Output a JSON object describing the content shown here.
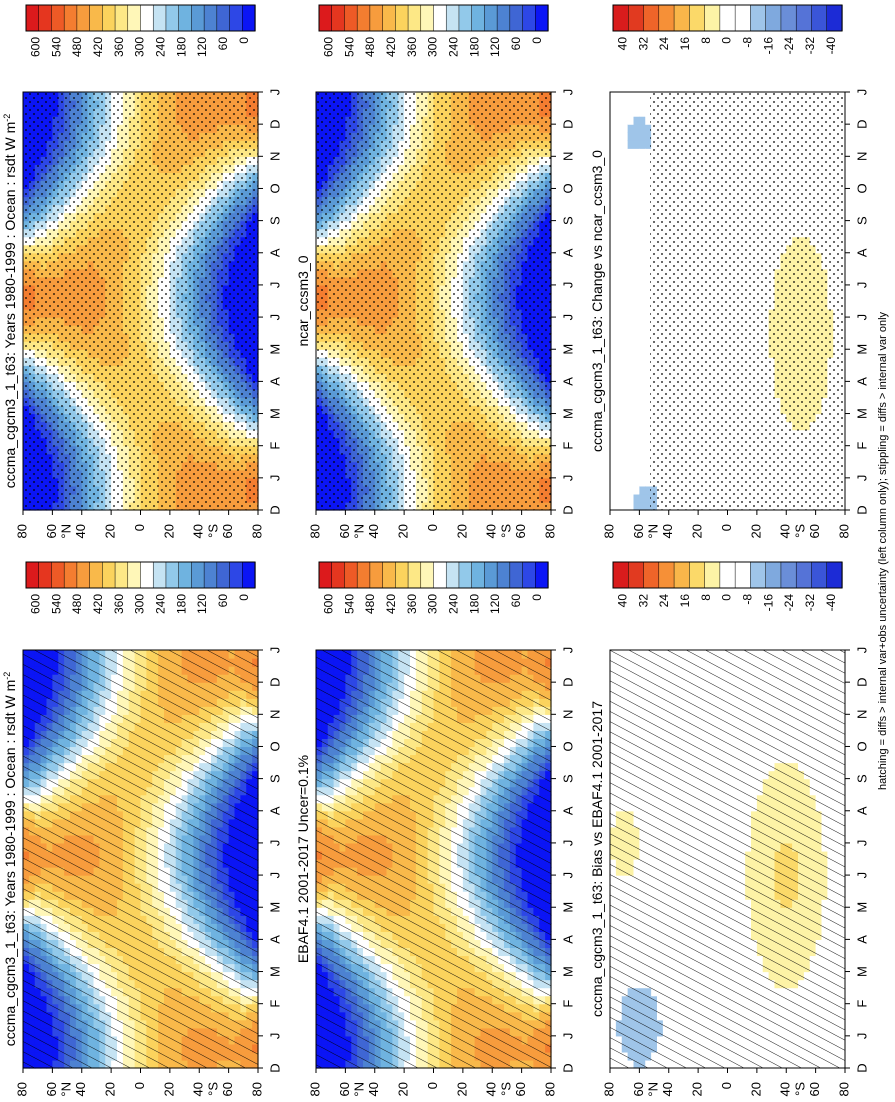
{
  "footer": "hatching = diffs > internal var+obs uncertainty (left column only); stippling = diffs > internal var only",
  "colors": {
    "abs_scale": [
      "#0b15f5",
      "#2d47e6",
      "#3f66d4",
      "#4d82d2",
      "#5a9ad6",
      "#6fb3e0",
      "#92c9ea",
      "#c5e3f3",
      "#ffffff",
      "#fff7b8",
      "#fde886",
      "#fbd35d",
      "#f9b94a",
      "#f79c3d",
      "#f47d30",
      "#ee5a26",
      "#e5361f",
      "#dc1a1c"
    ],
    "diff_scale": [
      "#1c2bd6",
      "#3a55d8",
      "#5573d7",
      "#6a8ed8",
      "#7fa9de",
      "#9fc5e9",
      "#ffffff",
      "#ffffff",
      "#fdf3a6",
      "#fbd969",
      "#f9b64a",
      "#f69037",
      "#ef6429",
      "#e13a20",
      "#d91c1c"
    ]
  },
  "chart_data": [
    {
      "type": "heatmap",
      "title": "cccma_cgcm3_1_t63: Years 1980-1999 : Ocean : rsdt W m",
      "title_superscript": "-2",
      "x_tick_labels": [
        "D",
        "J",
        "F",
        "M",
        "A",
        "M",
        "J",
        "J",
        "A",
        "S",
        "O",
        "N",
        "D",
        "J"
      ],
      "y_tick_labels": [
        "80",
        "60",
        "40",
        "20",
        "0",
        "20",
        "40",
        "60",
        "80"
      ],
      "y_hemisphere_labels": [
        "°N",
        "°S"
      ],
      "colorbar_labels": [
        "600",
        "540",
        "480",
        "420",
        "360",
        "300",
        "240",
        "180",
        "120",
        "60",
        "0"
      ],
      "range": [
        0,
        630
      ],
      "overlay": "hatching"
    },
    {
      "type": "heatmap",
      "title": "cccma_cgcm3_1_t63: Years 1980-1999 : Ocean : rsdt W m",
      "title_superscript": "-2",
      "x_tick_labels": [
        "D",
        "J",
        "F",
        "M",
        "A",
        "M",
        "J",
        "J",
        "A",
        "S",
        "O",
        "N",
        "D",
        "J"
      ],
      "y_tick_labels": [
        "80",
        "60",
        "40",
        "20",
        "0",
        "20",
        "40",
        "60",
        "80"
      ],
      "y_hemisphere_labels": [
        "°N",
        "°S"
      ],
      "colorbar_labels": [
        "600",
        "540",
        "480",
        "420",
        "360",
        "300",
        "240",
        "180",
        "120",
        "60",
        "0"
      ],
      "range": [
        0,
        630
      ],
      "overlay": "stippling"
    },
    {
      "type": "heatmap",
      "title": "EBAF4.1 2001-2017 Uncer=0.1%",
      "x_tick_labels": [
        "D",
        "J",
        "F",
        "M",
        "A",
        "M",
        "J",
        "J",
        "A",
        "S",
        "O",
        "N",
        "D",
        "J"
      ],
      "y_tick_labels": [
        "80",
        "60",
        "40",
        "20",
        "0",
        "20",
        "40",
        "60",
        "80"
      ],
      "y_hemisphere_labels": [
        "°N",
        "°S"
      ],
      "colorbar_labels": [
        "600",
        "540",
        "480",
        "420",
        "360",
        "300",
        "240",
        "180",
        "120",
        "60",
        "0"
      ],
      "range": [
        0,
        630
      ],
      "overlay": "hatching"
    },
    {
      "type": "heatmap",
      "title": "ncar_ccsm3_0",
      "x_tick_labels": [
        "D",
        "J",
        "F",
        "M",
        "A",
        "M",
        "J",
        "J",
        "A",
        "S",
        "O",
        "N",
        "D",
        "J"
      ],
      "y_tick_labels": [
        "80",
        "60",
        "40",
        "20",
        "0",
        "20",
        "40",
        "60",
        "80"
      ],
      "y_hemisphere_labels": [
        "°N",
        "°S"
      ],
      "colorbar_labels": [
        "600",
        "540",
        "480",
        "420",
        "360",
        "300",
        "240",
        "180",
        "120",
        "60",
        "0"
      ],
      "range": [
        0,
        630
      ],
      "overlay": "stippling"
    },
    {
      "type": "heatmap",
      "title": "cccma_cgcm3_1_t63: Bias vs EBAF4.1 2001-2017",
      "x_tick_labels": [
        "D",
        "J",
        "F",
        "M",
        "A",
        "M",
        "J",
        "J",
        "A",
        "S",
        "O",
        "N",
        "D",
        "J"
      ],
      "y_tick_labels": [
        "80",
        "60",
        "40",
        "20",
        "0",
        "20",
        "40",
        "60",
        "80"
      ],
      "y_hemisphere_labels": [
        "°N",
        "°S"
      ],
      "colorbar_labels": [
        "40",
        "32",
        "24",
        "16",
        "8",
        "0",
        "-8",
        "-16",
        "-24",
        "-32",
        "-40"
      ],
      "range": [
        -44,
        44
      ],
      "overlay": "hatching"
    },
    {
      "type": "heatmap",
      "title": "cccma_cgcm3_1_t63: Change vs ncar_ccsm3_0",
      "x_tick_labels": [
        "D",
        "J",
        "F",
        "M",
        "A",
        "M",
        "J",
        "J",
        "A",
        "S",
        "O",
        "N",
        "D",
        "J"
      ],
      "y_tick_labels": [
        "80",
        "60",
        "40",
        "20",
        "0",
        "20",
        "40",
        "60",
        "80"
      ],
      "y_hemisphere_labels": [
        "°N",
        "°S"
      ],
      "colorbar_labels": [
        "40",
        "32",
        "24",
        "16",
        "8",
        "0",
        "-8",
        "-16",
        "-24",
        "-32",
        "-40"
      ],
      "range": [
        -44,
        44
      ],
      "overlay": "stippling"
    }
  ]
}
